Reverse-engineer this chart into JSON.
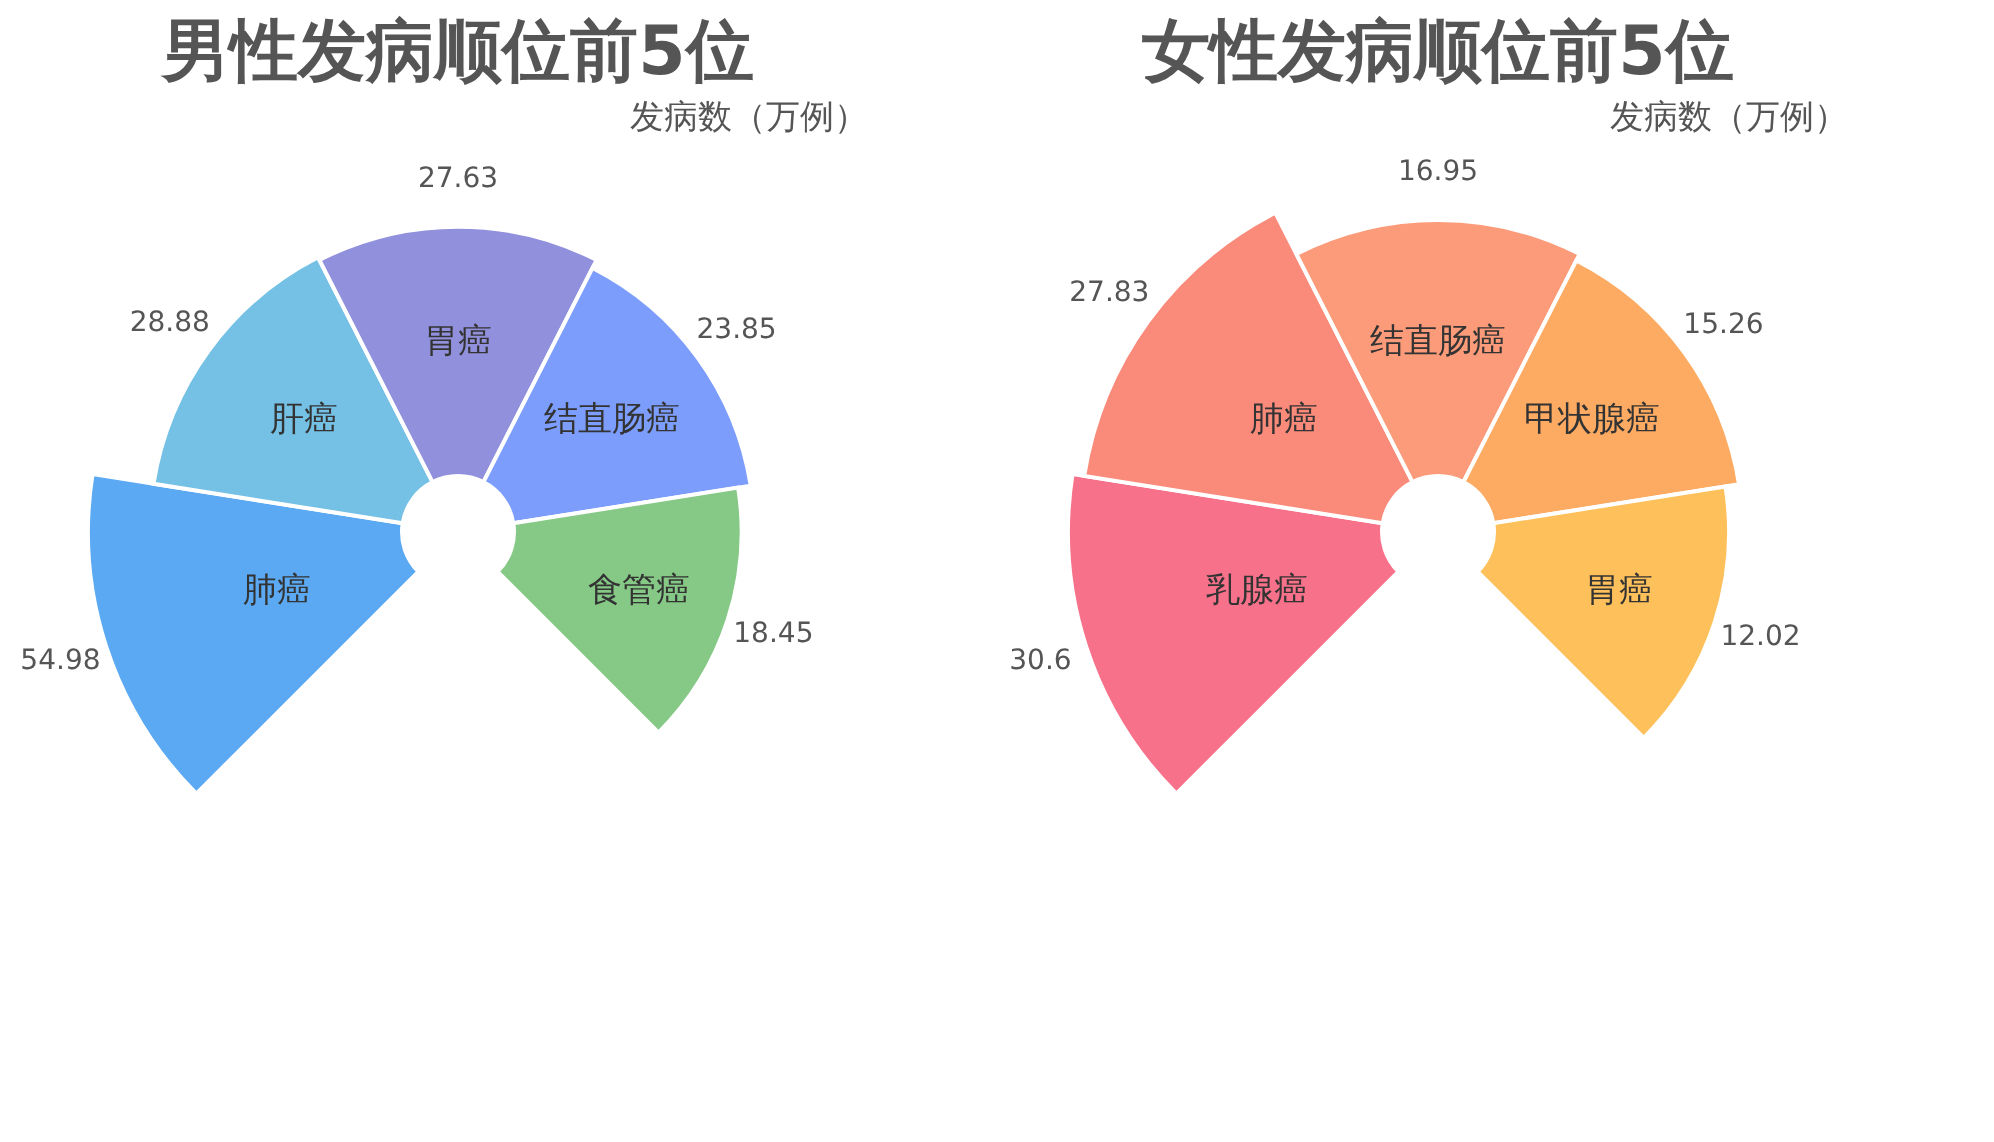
{
  "chart_data": [
    {
      "type": "other",
      "title": "男性发病顺位前5位",
      "subtitle": "发病数（万例）",
      "categories": [
        "肺癌",
        "肝癌",
        "胃癌",
        "结直肠癌",
        "食管癌"
      ],
      "values": [
        54.98,
        28.88,
        27.63,
        23.85,
        18.45
      ],
      "colors": [
        "#5aa9f2",
        "#74c1e5",
        "#9190dc",
        "#7c9dfb",
        "#86c986"
      ],
      "data_labels": true
    },
    {
      "type": "other",
      "title": "女性发病顺位前5位",
      "subtitle": "发病数（万例）",
      "categories": [
        "乳腺癌",
        "肺癌",
        "结直肠癌",
        "甲状腺癌",
        "胃癌"
      ],
      "values": [
        30.6,
        27.83,
        16.95,
        15.26,
        12.02
      ],
      "colors": [
        "#f8718a",
        "#fa8a7a",
        "#fb9b79",
        "#fdab62",
        "#fdc05b"
      ],
      "data_labels": true
    }
  ]
}
